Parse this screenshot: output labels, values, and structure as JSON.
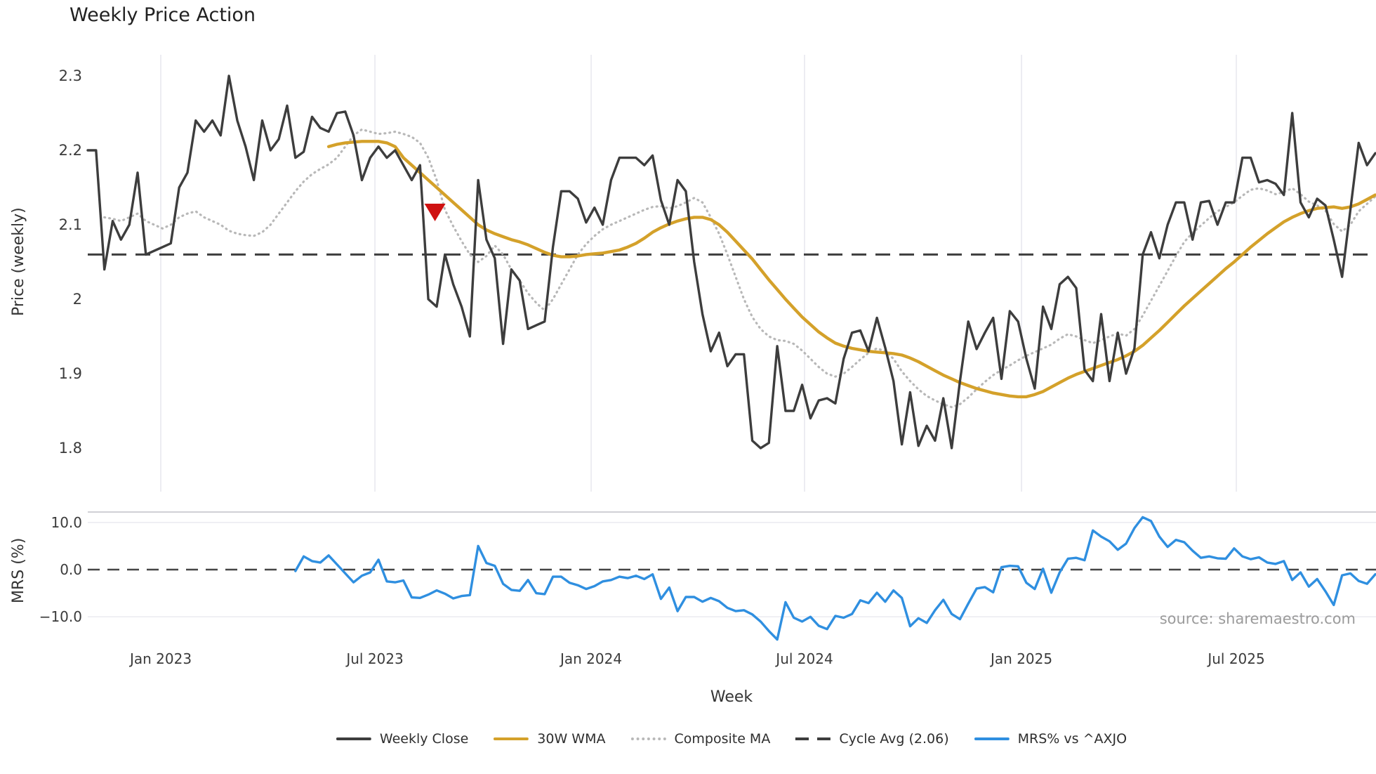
{
  "title": "Weekly Price Action",
  "source": "source: sharemaestro.com",
  "axes": {
    "price_label": "Price (weekly)",
    "mrs_label": "MRS (%)",
    "week_label": "Week",
    "price_ticks": [
      {
        "v": 2.3,
        "label": "2.3"
      },
      {
        "v": 2.2,
        "label": "2.2"
      },
      {
        "v": 2.1,
        "label": "2.1"
      },
      {
        "v": 2.0,
        "label": "2"
      },
      {
        "v": 1.9,
        "label": "1.9"
      },
      {
        "v": 1.8,
        "label": "1.8"
      }
    ],
    "mrs_ticks": [
      {
        "v": 10,
        "label": "10.0"
      },
      {
        "v": 0,
        "label": "0.0"
      },
      {
        "v": -10,
        "label": "−10.0"
      }
    ],
    "x_ticks": [
      {
        "week": 8.79,
        "label": "Jan 2023"
      },
      {
        "week": 34.57,
        "label": "Jul 2023"
      },
      {
        "week": 60.6,
        "label": "Jan 2024"
      },
      {
        "week": 86.29,
        "label": "Jul 2024"
      },
      {
        "week": 112.41,
        "label": "Jan 2025"
      },
      {
        "week": 138.27,
        "label": "Jul 2025"
      }
    ]
  },
  "colors": {
    "close": "#3d3d3d",
    "wma": "#d4a12a",
    "composite": "#b8b8b8",
    "cycle": "#3d3d3d",
    "mrs": "#2f8fe0",
    "marker": "#cf1111",
    "grid": "#e8e8ef",
    "panel_border": "#d0d0d5",
    "panel_grid": "#ececf1"
  },
  "legend": {
    "items": [
      {
        "label": "Weekly Close",
        "swatch": "solid",
        "color": "#3d3d3d"
      },
      {
        "label": "30W WMA",
        "swatch": "solid",
        "color": "#d4a12a"
      },
      {
        "label": "Composite MA",
        "swatch": "dotted",
        "color": "#b8b8b8"
      },
      {
        "label": "Cycle Avg (2.06)",
        "swatch": "dashed",
        "color": "#3d3d3d"
      },
      {
        "label": "MRS% vs ^AXJO",
        "swatch": "solid",
        "color": "#2f8fe0"
      }
    ]
  },
  "chart_data": {
    "type": "line",
    "x_axis": {
      "label": "Week",
      "range_weeks": 156,
      "start": "Nov 2022",
      "end": "Nov 2025"
    },
    "panels": [
      {
        "name": "price",
        "ylabel": "Price (weekly)",
        "ylim": [
          1.78,
          2.33
        ],
        "cycle_avg": 2.06,
        "marker": {
          "shape": "triangle-down",
          "week": 41.8,
          "price": 2.117
        },
        "series": [
          {
            "name": "Weekly Close",
            "style": "solid",
            "start_week": 0,
            "values": [
              2.2,
              2.2,
              2.04,
              2.105,
              2.08,
              2.1,
              2.17,
              2.06,
              2.065,
              2.07,
              2.075,
              2.15,
              2.17,
              2.24,
              2.225,
              2.24,
              2.22,
              2.3,
              2.24,
              2.205,
              2.16,
              2.24,
              2.2,
              2.215,
              2.26,
              2.19,
              2.198,
              2.245,
              2.23,
              2.225,
              2.25,
              2.252,
              2.22,
              2.16,
              2.19,
              2.205,
              2.19,
              2.2,
              2.18,
              2.16,
              2.18,
              2.0,
              1.99,
              2.06,
              2.02,
              1.99,
              1.95,
              2.16,
              2.08,
              2.055,
              1.94,
              2.04,
              2.025,
              1.96,
              1.965,
              1.97,
              2.07,
              2.145,
              2.145,
              2.135,
              2.103,
              2.123,
              2.1,
              2.16,
              2.19,
              2.19,
              2.19,
              2.18,
              2.193,
              2.133,
              2.1,
              2.16,
              2.145,
              2.05,
              1.98,
              1.93,
              1.955,
              1.91,
              1.926,
              1.926,
              1.81,
              1.8,
              1.807,
              1.937,
              1.85,
              1.85,
              1.885,
              1.84,
              1.864,
              1.867,
              1.86,
              1.92,
              1.955,
              1.958,
              1.93,
              1.975,
              1.935,
              1.89,
              1.805,
              1.875,
              1.803,
              1.83,
              1.81,
              1.867,
              1.8,
              1.89,
              1.97,
              1.933,
              1.955,
              1.975,
              1.893,
              1.984,
              1.97,
              1.92,
              1.88,
              1.99,
              1.96,
              2.02,
              2.03,
              2.015,
              1.905,
              1.89,
              1.98,
              1.89,
              1.955,
              1.9,
              1.934,
              2.06,
              2.09,
              2.055,
              2.1,
              2.13,
              2.13,
              2.08,
              2.13,
              2.132,
              2.1,
              2.13,
              2.13,
              2.19,
              2.19,
              2.157,
              2.16,
              2.155,
              2.14,
              2.25,
              2.13,
              2.11,
              2.135,
              2.126,
              2.08,
              2.03,
              2.12,
              2.21,
              2.18,
              2.196
            ]
          },
          {
            "name": "30W WMA",
            "style": "solid",
            "start_week": 29,
            "values": [
              2.205,
              2.208,
              2.21,
              2.211,
              2.212,
              2.212,
              2.212,
              2.21,
              2.205,
              2.19,
              2.18,
              2.17,
              2.16,
              2.15,
              2.14,
              2.13,
              2.12,
              2.11,
              2.1,
              2.093,
              2.088,
              2.084,
              2.08,
              2.077,
              2.073,
              2.068,
              2.063,
              2.059,
              2.057,
              2.057,
              2.058,
              2.06,
              2.061,
              2.062,
              2.064,
              2.066,
              2.07,
              2.075,
              2.082,
              2.09,
              2.096,
              2.101,
              2.105,
              2.108,
              2.11,
              2.11,
              2.107,
              2.1,
              2.09,
              2.078,
              2.066,
              2.054,
              2.04,
              2.026,
              2.013,
              2.0,
              1.988,
              1.976,
              1.966,
              1.956,
              1.948,
              1.941,
              1.937,
              1.934,
              1.932,
              1.93,
              1.929,
              1.928,
              1.927,
              1.925,
              1.921,
              1.916,
              1.91,
              1.904,
              1.898,
              1.893,
              1.888,
              1.884,
              1.88,
              1.877,
              1.874,
              1.872,
              1.87,
              1.869,
              1.869,
              1.872,
              1.876,
              1.882,
              1.888,
              1.894,
              1.899,
              1.903,
              1.907,
              1.911,
              1.915,
              1.919,
              1.924,
              1.93,
              1.938,
              1.948,
              1.958,
              1.969,
              1.98,
              1.991,
              2.001,
              2.011,
              2.021,
              2.031,
              2.041,
              2.05,
              2.06,
              2.07,
              2.079,
              2.088,
              2.096,
              2.104,
              2.11,
              2.115,
              2.119,
              2.122,
              2.123,
              2.124,
              2.122,
              2.124,
              2.128,
              2.134,
              2.14
            ]
          },
          {
            "name": "Composite MA",
            "style": "dotted",
            "start_week": 2,
            "values": [
              2.11,
              2.108,
              2.105,
              2.11,
              2.115,
              2.105,
              2.1,
              2.095,
              2.1,
              2.11,
              2.115,
              2.118,
              2.11,
              2.105,
              2.1,
              2.092,
              2.088,
              2.086,
              2.085,
              2.09,
              2.1,
              2.115,
              2.13,
              2.145,
              2.158,
              2.168,
              2.175,
              2.181,
              2.19,
              2.205,
              2.22,
              2.228,
              2.225,
              2.222,
              2.223,
              2.225,
              2.222,
              2.218,
              2.21,
              2.19,
              2.16,
              2.12,
              2.098,
              2.078,
              2.06,
              2.05,
              2.058,
              2.072,
              2.06,
              2.04,
              2.025,
              2.008,
              1.995,
              1.985,
              2.0,
              2.02,
              2.04,
              2.06,
              2.074,
              2.085,
              2.094,
              2.1,
              2.105,
              2.11,
              2.115,
              2.12,
              2.124,
              2.125,
              2.122,
              2.125,
              2.13,
              2.136,
              2.13,
              2.11,
              2.088,
              2.06,
              2.03,
              2.0,
              1.976,
              1.96,
              1.95,
              1.945,
              1.944,
              1.94,
              1.931,
              1.92,
              1.909,
              1.9,
              1.896,
              1.9,
              1.909,
              1.919,
              1.928,
              1.934,
              1.93,
              1.92,
              1.903,
              1.89,
              1.879,
              1.87,
              1.864,
              1.859,
              1.855,
              1.859,
              1.868,
              1.879,
              1.889,
              1.898,
              1.905,
              1.911,
              1.918,
              1.924,
              1.929,
              1.934,
              1.939,
              1.947,
              1.953,
              1.95,
              1.945,
              1.941,
              1.945,
              1.95,
              1.954,
              1.951,
              1.96,
              1.978,
              1.998,
              2.018,
              2.038,
              2.058,
              2.077,
              2.089,
              2.099,
              2.109,
              2.118,
              2.124,
              2.13,
              2.139,
              2.147,
              2.149,
              2.146,
              2.141,
              2.144,
              2.149,
              2.141,
              2.131,
              2.126,
              2.119,
              2.101,
              2.091,
              2.1,
              2.118,
              2.128,
              2.138
            ]
          }
        ]
      },
      {
        "name": "mrs",
        "ylabel": "MRS (%)",
        "ylim": [
          -16,
          12.5
        ],
        "zero_line": 0,
        "series": [
          {
            "name": "MRS% vs ^AXJO",
            "style": "solid",
            "start_week": 25,
            "values": [
              -0.3,
              2.8,
              1.8,
              1.5,
              3.0,
              1.1,
              -0.8,
              -2.7,
              -1.3,
              -0.6,
              2.1,
              -2.5,
              -2.7,
              -2.3,
              -5.9,
              -6.0,
              -5.3,
              -4.4,
              -5.1,
              -6.1,
              -5.6,
              -5.4,
              5.0,
              1.4,
              0.8,
              -3.0,
              -4.3,
              -4.5,
              -2.2,
              -5.0,
              -5.2,
              -1.5,
              -1.5,
              -2.8,
              -3.3,
              -4.1,
              -3.5,
              -2.5,
              -2.2,
              -1.5,
              -1.8,
              -1.3,
              -2.0,
              -1.0,
              -6.2,
              -3.8,
              -8.8,
              -5.8,
              -5.8,
              -6.8,
              -6.0,
              -6.7,
              -8.1,
              -8.8,
              -8.6,
              -9.5,
              -11.0,
              -13.0,
              -14.8,
              -6.9,
              -10.2,
              -11.0,
              -10.0,
              -11.9,
              -12.6,
              -9.8,
              -10.2,
              -9.4,
              -6.5,
              -7.1,
              -4.9,
              -6.8,
              -4.4,
              -6.0,
              -12.0,
              -10.3,
              -11.3,
              -8.6,
              -6.4,
              -9.4,
              -10.5,
              -7.2,
              -4.0,
              -3.7,
              -4.8,
              0.5,
              0.8,
              0.7,
              -2.8,
              -4.1,
              0.2,
              -4.9,
              -0.6,
              2.3,
              2.5,
              2.0,
              8.3,
              7.0,
              6.0,
              4.2,
              5.5,
              8.8,
              11.1,
              10.3,
              7.0,
              4.8,
              6.3,
              5.8,
              4.0,
              2.5,
              2.8,
              2.4,
              2.3,
              4.5,
              2.8,
              2.2,
              2.6,
              1.5,
              1.2,
              1.8,
              -2.2,
              -0.6,
              -3.6,
              -2.0,
              -4.6,
              -7.5,
              -1.2,
              -0.8,
              -2.4,
              -3.0,
              -1.0
            ]
          }
        ]
      }
    ]
  }
}
